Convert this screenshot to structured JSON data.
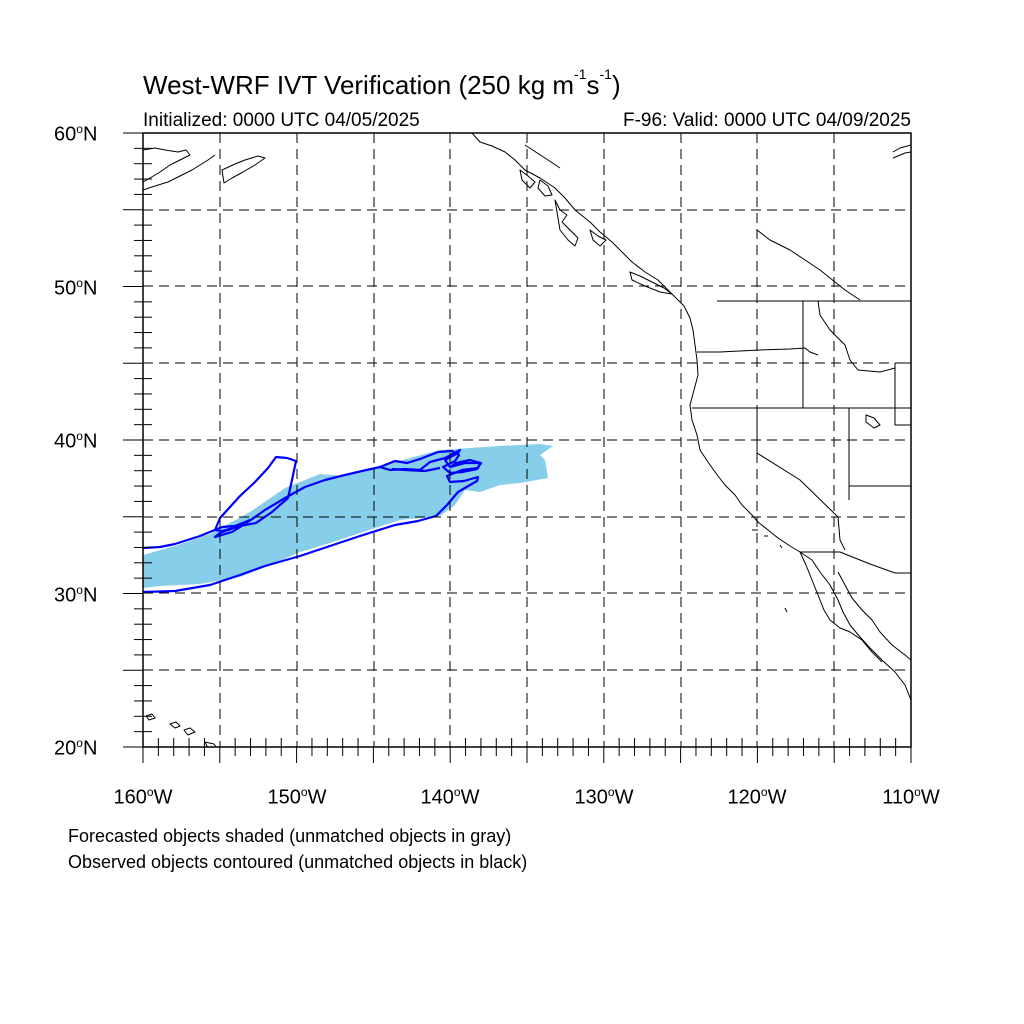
{
  "title": {
    "main": "West-WRF IVT Verification (250 kg m",
    "exp1": "-1",
    "mid": "s",
    "exp2": "-1",
    "end": ")"
  },
  "subtitle_left": "Initialized: 0000 UTC 04/05/2025",
  "subtitle_right": "F-96: Valid: 0000 UTC 04/09/2025",
  "map": {
    "lon_range": [
      -160,
      -110
    ],
    "lat_range": [
      20,
      60
    ],
    "grid": "dashed every 5 degrees",
    "lat_labels": [
      "20",
      "30",
      "40",
      "50",
      "60"
    ],
    "lon_labels": [
      "160",
      "150",
      "140",
      "130",
      "120",
      "110"
    ],
    "lat_suffix": "N",
    "lon_suffix": "W",
    "forecast_fill_color": "#87ceeb",
    "observed_contour_color": "#0000ff"
  },
  "footnotes": [
    "Forecasted objects shaded (unmatched objects in gray)",
    "Observed objects contoured (unmatched objects in black)"
  ]
}
